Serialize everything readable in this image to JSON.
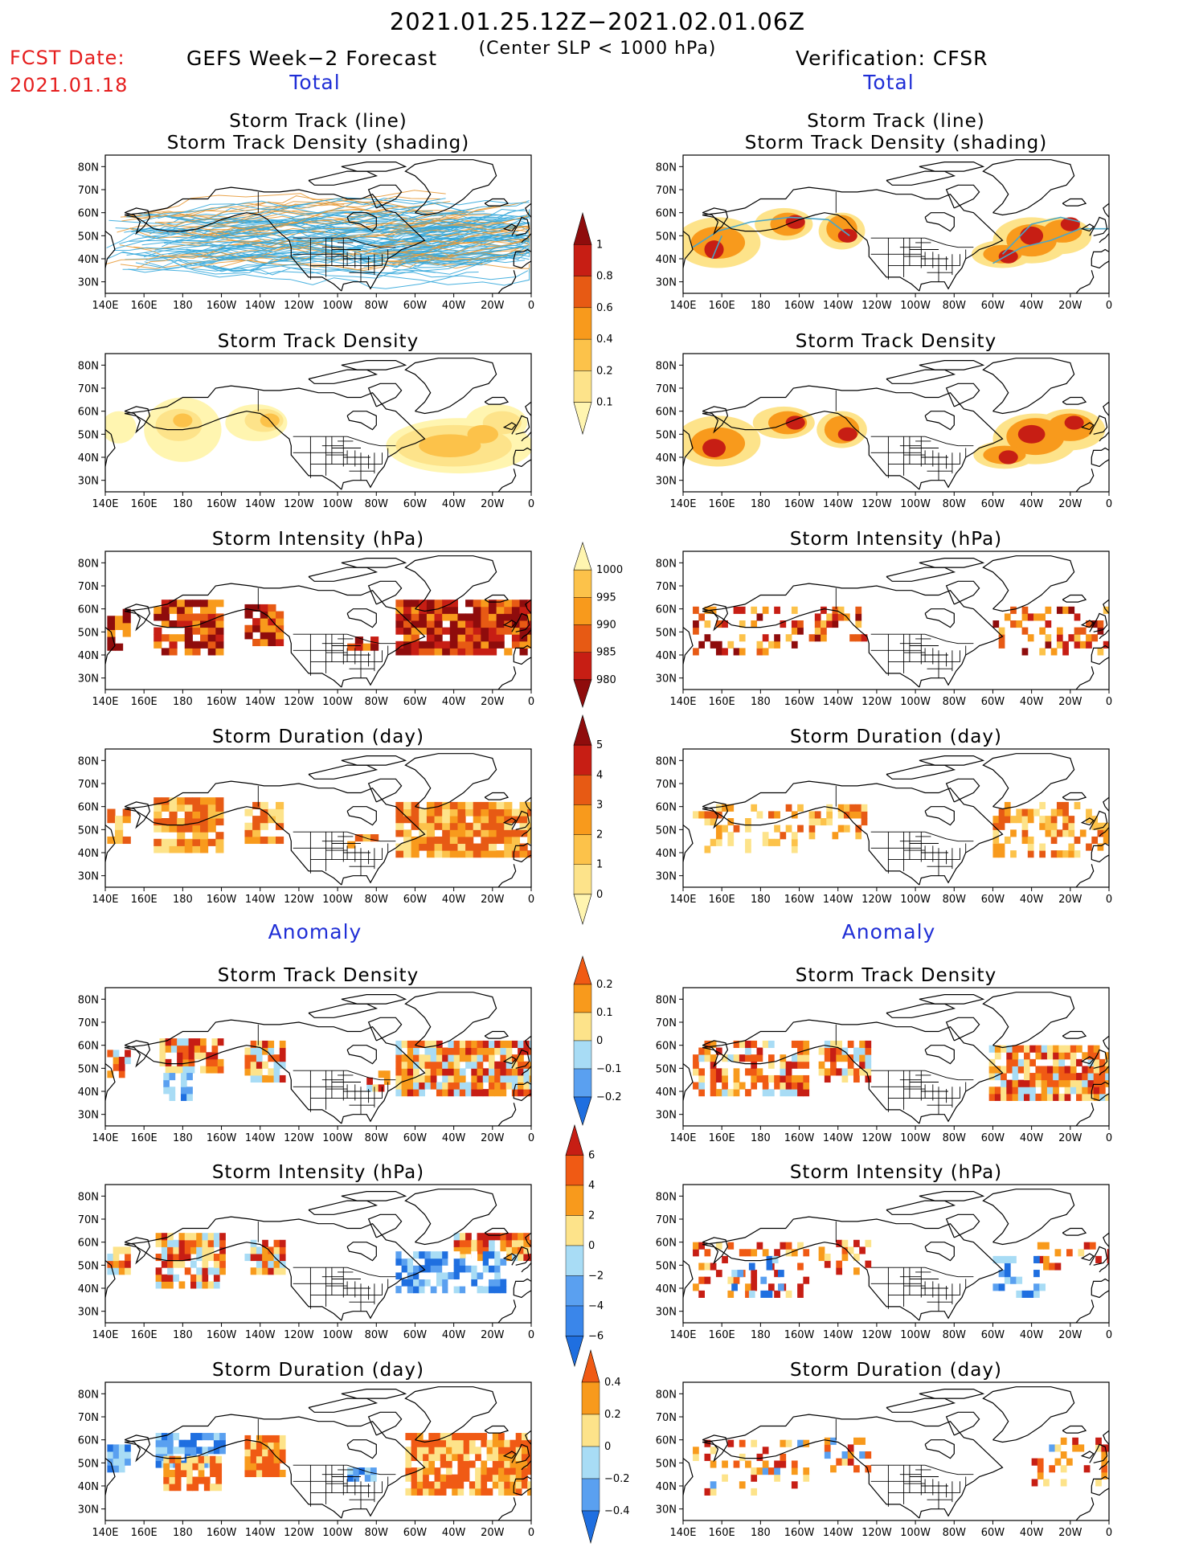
{
  "header": {
    "period": "2021.01.25.12Z−2021.02.01.06Z",
    "criterion": "(Center SLP < 1000 hPa)",
    "fcst_date_label": "FCST Date:",
    "fcst_date": "2021.01.18",
    "model_label": "GEFS Week−2 Forecast",
    "verification_label": "Verification: CFSR",
    "total_label": "Total",
    "anomaly_label": "Anomaly"
  },
  "axes": {
    "lat_ticks": [
      "80N",
      "70N",
      "60N",
      "50N",
      "40N",
      "30N"
    ],
    "lon_ticks": [
      "140E",
      "160E",
      "180",
      "160W",
      "140W",
      "120W",
      "100W",
      "80W",
      "60W",
      "40W",
      "20W",
      "0"
    ]
  },
  "colors": {
    "cyan_track": "#35a8dc",
    "orange_track": "#e89b3a",
    "density_scale": [
      "#fff5b0",
      "#fde38a",
      "#fcc24a",
      "#f89a1c",
      "#e75a14",
      "#c71e14",
      "#8f0c0c"
    ],
    "anomaly_scale": [
      "#1f6fe0",
      "#5aa0f0",
      "#a8dcf5",
      "#ffffff",
      "#fde38a",
      "#f89a1c",
      "#f05a14",
      "#c71e14"
    ],
    "title_blue": "#1f2ed6",
    "fcst_red": "#e51d1d"
  },
  "chart_data": [
    {
      "id": "fc-track",
      "type": "heatmap",
      "title_lines": [
        "Storm Track (line)",
        "Storm Track Density (shading)"
      ],
      "column": "forecast",
      "section": "total",
      "colorbar": "density"
    },
    {
      "id": "ob-track",
      "type": "heatmap",
      "title_lines": [
        "Storm Track (line)",
        "Storm Track Density (shading)"
      ],
      "column": "verification",
      "section": "total",
      "colorbar": "density"
    },
    {
      "id": "fc-density",
      "type": "heatmap",
      "title_lines": [
        "Storm Track Density"
      ],
      "column": "forecast",
      "section": "total"
    },
    {
      "id": "ob-density",
      "type": "heatmap",
      "title_lines": [
        "Storm Track Density"
      ],
      "column": "verification",
      "section": "total"
    },
    {
      "id": "fc-intensity",
      "type": "heatmap",
      "title_lines": [
        "Storm Intensity (hPa)"
      ],
      "column": "forecast",
      "section": "total",
      "colorbar": "intensity"
    },
    {
      "id": "ob-intensity",
      "type": "heatmap",
      "title_lines": [
        "Storm Intensity (hPa)"
      ],
      "column": "verification",
      "section": "total"
    },
    {
      "id": "fc-duration",
      "type": "heatmap",
      "title_lines": [
        "Storm Duration (day)"
      ],
      "column": "forecast",
      "section": "total",
      "colorbar": "duration"
    },
    {
      "id": "ob-duration",
      "type": "heatmap",
      "title_lines": [
        "Storm Duration (day)"
      ],
      "column": "verification",
      "section": "total"
    },
    {
      "id": "fa-density",
      "type": "heatmap",
      "title_lines": [
        "Storm Track Density"
      ],
      "column": "forecast",
      "section": "anomaly",
      "colorbar": "anom_density"
    },
    {
      "id": "oa-density",
      "type": "heatmap",
      "title_lines": [
        "Storm Track Density"
      ],
      "column": "verification",
      "section": "anomaly"
    },
    {
      "id": "fa-intensity",
      "type": "heatmap",
      "title_lines": [
        "Storm Intensity (hPa)"
      ],
      "column": "forecast",
      "section": "anomaly",
      "colorbar": "anom_intensity"
    },
    {
      "id": "oa-intensity",
      "type": "heatmap",
      "title_lines": [
        "Storm Intensity (hPa)"
      ],
      "column": "verification",
      "section": "anomaly"
    },
    {
      "id": "fa-duration",
      "type": "heatmap",
      "title_lines": [
        "Storm Duration (day)"
      ],
      "column": "forecast",
      "section": "anomaly",
      "colorbar": "anom_duration"
    },
    {
      "id": "oa-duration",
      "type": "heatmap",
      "title_lines": [
        "Storm Duration (day)"
      ],
      "column": "verification",
      "section": "anomaly"
    }
  ],
  "colorbars": {
    "density": {
      "labels": [
        "1",
        "0.8",
        "0.6",
        "0.4",
        "0.2",
        "0.1"
      ],
      "colors": [
        "#8f0c0c",
        "#c71e14",
        "#e75a14",
        "#f89a1c",
        "#fcc24a",
        "#fde38a",
        "#fff5b0"
      ]
    },
    "intensity": {
      "labels": [
        "1000",
        "995",
        "990",
        "985",
        "980"
      ],
      "colors": [
        "#fff5b0",
        "#fcc24a",
        "#f89a1c",
        "#e75a14",
        "#c71e14",
        "#8f0c0c"
      ]
    },
    "duration": {
      "labels": [
        "5",
        "4",
        "3",
        "2",
        "1",
        "0"
      ],
      "colors": [
        "#8f0c0c",
        "#c71e14",
        "#e75a14",
        "#f89a1c",
        "#fcc24a",
        "#fde38a",
        "#fff5b0"
      ]
    },
    "anom_density": {
      "labels": [
        "0.2",
        "0.1",
        "0",
        "−0.1",
        "−0.2"
      ],
      "colors": [
        "#f05a14",
        "#f89a1c",
        "#fde38a",
        "#a8dcf5",
        "#5aa0f0",
        "#1f6fe0"
      ]
    },
    "anom_intensity": {
      "labels": [
        "6",
        "4",
        "2",
        "0",
        "−2",
        "−4",
        "−6"
      ],
      "colors": [
        "#c71e14",
        "#f05a14",
        "#f89a1c",
        "#fde38a",
        "#a8dcf5",
        "#5aa0f0",
        "#3a86ea",
        "#1f6fe0"
      ]
    },
    "anom_duration": {
      "labels": [
        "0.4",
        "0.2",
        "0",
        "−0.2",
        "−0.4"
      ],
      "colors": [
        "#f05a14",
        "#f89a1c",
        "#fde38a",
        "#a8dcf5",
        "#5aa0f0",
        "#1f6fe0"
      ]
    }
  }
}
